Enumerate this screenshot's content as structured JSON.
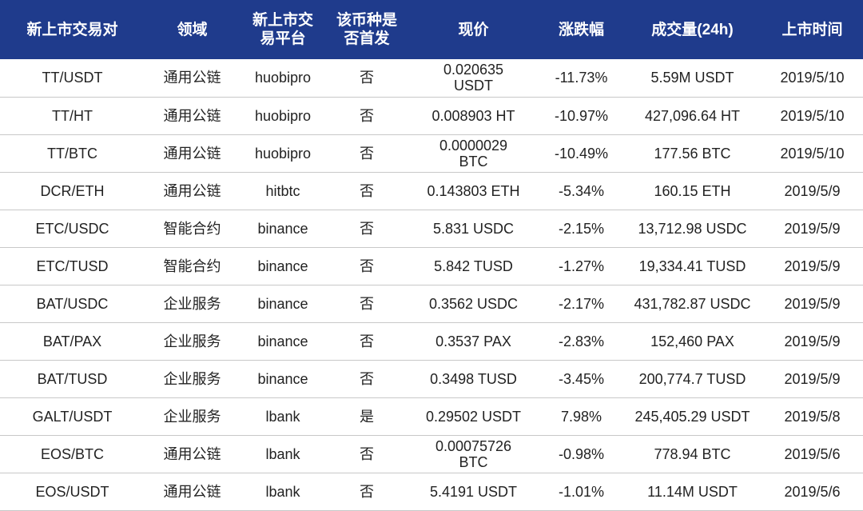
{
  "table": {
    "headers": [
      [
        "新上市交易对"
      ],
      [
        "领域"
      ],
      [
        "新上市交",
        "易平台"
      ],
      [
        "该币种是",
        "否首发"
      ],
      [
        "现价"
      ],
      [
        "涨跌幅"
      ],
      [
        "成交量(24h)"
      ],
      [
        "上市时间"
      ]
    ],
    "rows": [
      [
        "TT/USDT",
        "通用公链",
        "huobipro",
        "否",
        "0.020635 USDT",
        "-11.73%",
        "5.59M USDT",
        "2019/5/10"
      ],
      [
        "TT/HT",
        "通用公链",
        "huobipro",
        "否",
        "0.008903 HT",
        "-10.97%",
        "427,096.64 HT",
        "2019/5/10"
      ],
      [
        "TT/BTC",
        "通用公链",
        "huobipro",
        "否",
        "0.0000029 BTC",
        "-10.49%",
        "177.56 BTC",
        "2019/5/10"
      ],
      [
        "DCR/ETH",
        "通用公链",
        "hitbtc",
        "否",
        "0.143803 ETH",
        "-5.34%",
        "160.15 ETH",
        "2019/5/9"
      ],
      [
        "ETC/USDC",
        "智能合约",
        "binance",
        "否",
        "5.831 USDC",
        "-2.15%",
        "13,712.98 USDC",
        "2019/5/9"
      ],
      [
        "ETC/TUSD",
        "智能合约",
        "binance",
        "否",
        "5.842 TUSD",
        "-1.27%",
        "19,334.41 TUSD",
        "2019/5/9"
      ],
      [
        "BAT/USDC",
        "企业服务",
        "binance",
        "否",
        "0.3562 USDC",
        "-2.17%",
        "431,782.87 USDC",
        "2019/5/9"
      ],
      [
        "BAT/PAX",
        "企业服务",
        "binance",
        "否",
        "0.3537 PAX",
        "-2.83%",
        "152,460 PAX",
        "2019/5/9"
      ],
      [
        "BAT/TUSD",
        "企业服务",
        "binance",
        "否",
        "0.3498 TUSD",
        "-3.45%",
        "200,774.7 TUSD",
        "2019/5/9"
      ],
      [
        "GALT/USDT",
        "企业服务",
        "lbank",
        "是",
        "0.29502 USDT",
        "7.98%",
        "245,405.29 USDT",
        "2019/5/8"
      ],
      [
        "EOS/BTC",
        "通用公链",
        "lbank",
        "否",
        "0.00075726 BTC",
        "-0.98%",
        "778.94 BTC",
        "2019/5/6"
      ],
      [
        "EOS/USDT",
        "通用公链",
        "lbank",
        "否",
        "5.4191 USDT",
        "-1.01%",
        "11.14M USDT",
        "2019/5/6"
      ]
    ]
  },
  "colors": {
    "header_bg": "#1f3b8c",
    "header_text": "#ffffff",
    "row_border": "#c8c8c8"
  }
}
